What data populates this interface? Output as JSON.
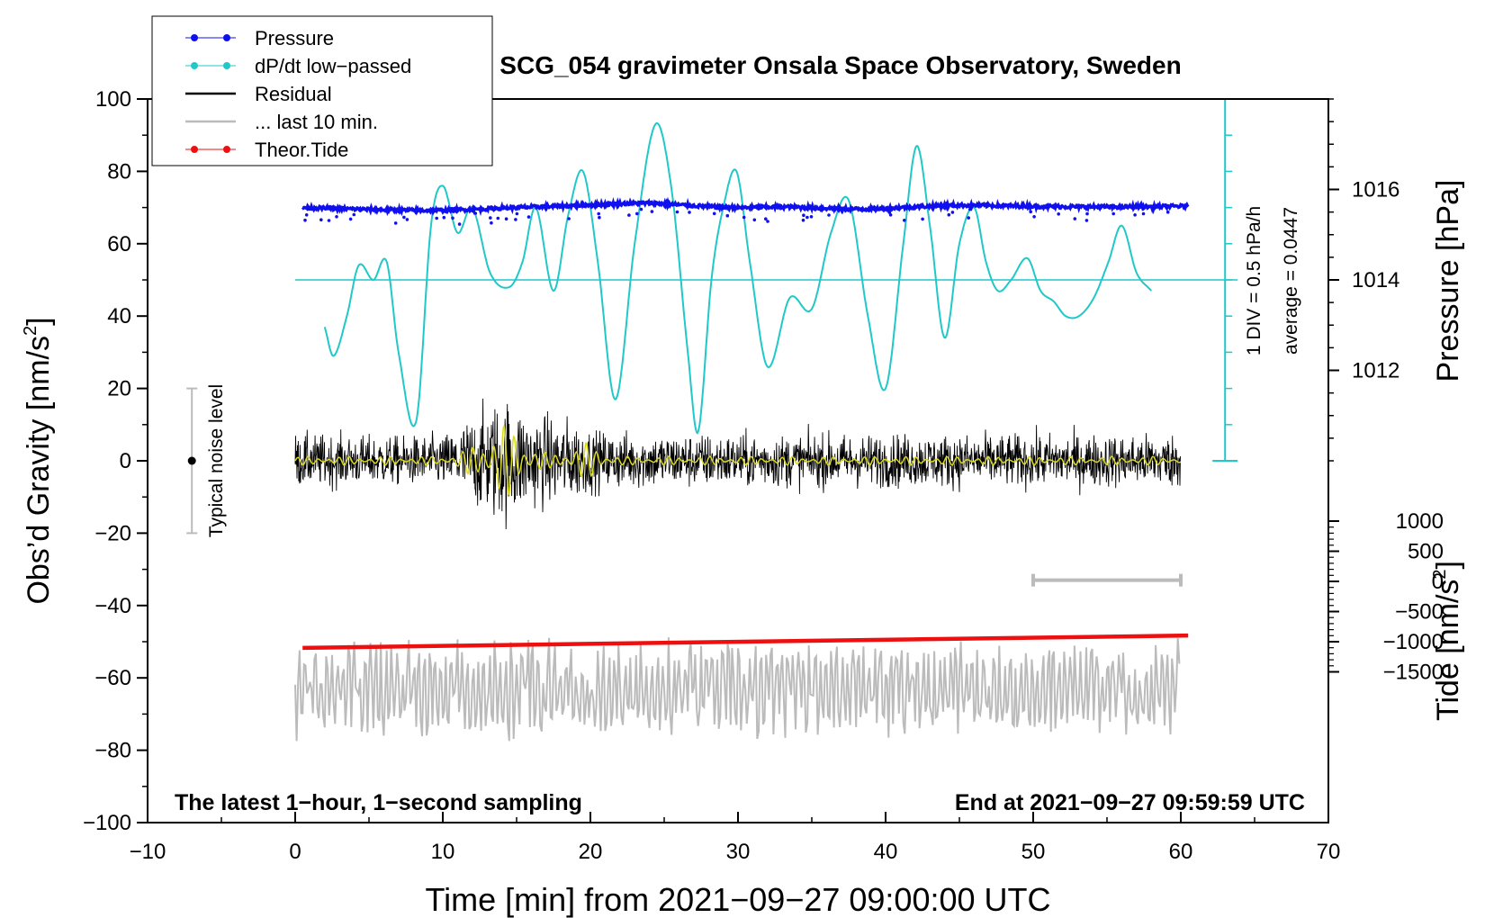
{
  "chart_data": {
    "type": "line",
    "title": "SCG_054 gravimeter Onsala Space Observatory, Sweden",
    "xlabel": "Time [min] from 2021−09−27 09:00:00 UTC",
    "ylabel_left": "Obs’d Gravity [nm/s",
    "ylabel_right_top": "Pressure [hPa]",
    "ylabel_right_bottom": "Tide [nm/s",
    "superscript": "2",
    "closing_bracket": "]",
    "xlim": [
      -10,
      70
    ],
    "ylim": [
      -100,
      100
    ],
    "x_ticks": [
      {
        "value": -10,
        "label": "−10"
      },
      {
        "value": 0,
        "label": "0"
      },
      {
        "value": 10,
        "label": "10"
      },
      {
        "value": 20,
        "label": "20"
      },
      {
        "value": 30,
        "label": "30"
      },
      {
        "value": 40,
        "label": "40"
      },
      {
        "value": 50,
        "label": "50"
      },
      {
        "value": 60,
        "label": "60"
      },
      {
        "value": 70,
        "label": "70"
      }
    ],
    "y_ticks": [
      {
        "value": 100,
        "label": "100"
      },
      {
        "value": 80,
        "label": "80"
      },
      {
        "value": 60,
        "label": "60"
      },
      {
        "value": 40,
        "label": "40"
      },
      {
        "value": 20,
        "label": "20"
      },
      {
        "value": 0,
        "label": "0"
      },
      {
        "value": -20,
        "label": "−20"
      },
      {
        "value": -40,
        "label": "−40"
      },
      {
        "value": -60,
        "label": "−60"
      },
      {
        "value": -80,
        "label": "−80"
      },
      {
        "value": -100,
        "label": "−100"
      }
    ],
    "pressure_axis": {
      "ticks": [
        {
          "value": 1016,
          "label": "1016",
          "y_gravity": 75
        },
        {
          "value": 1014,
          "label": "1014",
          "y_gravity": 50
        },
        {
          "value": 1012,
          "label": "1012",
          "y_gravity": 25
        }
      ]
    },
    "tide_axis": {
      "ylim": [
        -1500,
        1000
      ],
      "ticks": [
        {
          "value": 1000,
          "label": "1000"
        },
        {
          "value": 500,
          "label": "500"
        },
        {
          "value": 0,
          "label": "0"
        },
        {
          "value": -500,
          "label": "−500"
        },
        {
          "value": -1000,
          "label": "−1000"
        },
        {
          "value": -1500,
          "label": "−1500"
        }
      ]
    },
    "dpdt_scale": {
      "label_div": "1 DIV = 0.5 hPa/h",
      "label_avg": "average = 0.0447",
      "x": 63,
      "y_top": 100,
      "y_bottom": 0,
      "y_mid": 50,
      "divisions": 10
    },
    "legend": [
      {
        "label": "Pressure",
        "color": "#1010ee",
        "marker": true
      },
      {
        "label": "dP/dt low−passed",
        "color": "#20c8c8",
        "marker": true
      },
      {
        "label": "Residual",
        "color": "#000000",
        "marker": false
      },
      {
        "label": "... last 10 min.",
        "color": "#bbbbbb",
        "marker": false
      },
      {
        "label": "Theor.Tide",
        "color": "#ee1010",
        "marker": true
      }
    ],
    "series": [
      {
        "name": "Pressure",
        "color": "#1010ee",
        "x": [
          0.5,
          3,
          6,
          9,
          12,
          15,
          18,
          21,
          24,
          27,
          30,
          33,
          36,
          39,
          42,
          45,
          48,
          51,
          54,
          57,
          60.5
        ],
        "y": [
          70.0,
          69.7,
          69.4,
          69.2,
          69.5,
          70.0,
          70.4,
          70.9,
          71.2,
          70.5,
          70.0,
          70.2,
          69.8,
          69.6,
          70.2,
          70.6,
          70.5,
          70.3,
          70.2,
          70.2,
          70.4
        ]
      },
      {
        "name": "dP/dt low-passed",
        "color": "#20c8c8",
        "x": [
          2,
          2.6,
          3.5,
          4.3,
          5.3,
          6.2,
          7,
          8.2,
          9.2,
          10,
          11,
          12,
          13.2,
          14.5,
          15.4,
          16.3,
          17.5,
          18.5,
          19.5,
          20.5,
          21.7,
          23,
          24.4,
          25.5,
          26.6,
          27.3,
          28.2,
          29,
          29.9,
          30.8,
          32,
          33.5,
          35,
          36.3,
          37.5,
          38.8,
          40,
          41.2,
          42.1,
          43,
          44,
          45,
          46,
          46.8,
          47.6,
          48.5,
          49.6,
          50.5,
          51.4,
          52.2,
          53.1,
          54.1,
          55.1,
          56,
          57,
          58
        ],
        "y": [
          37,
          29,
          40,
          54,
          50,
          55,
          30,
          11,
          65,
          76,
          63,
          70,
          52,
          48,
          55,
          70,
          47,
          68,
          80,
          55,
          17,
          60,
          93,
          75,
          30,
          8,
          50,
          70,
          80,
          55,
          26,
          45,
          42,
          63,
          72,
          40,
          20,
          60,
          87,
          65,
          34,
          60,
          70,
          55,
          47,
          50,
          56,
          47,
          44,
          40,
          40,
          45,
          55,
          65,
          52,
          47
        ]
      },
      {
        "name": "Residual",
        "color": "#000000",
        "x": [
          0,
          10,
          12,
          14,
          16,
          19,
          20,
          22,
          30,
          40,
          50,
          60
        ],
        "y_envelope": [
          12,
          12,
          20,
          28,
          22,
          18,
          14,
          13,
          12,
          12,
          12,
          12
        ]
      },
      {
        "name": "... last 10 min.",
        "color": "#bbbbbb",
        "x": [
          0,
          60
        ],
        "y_center": -63,
        "y_range": [
          -78,
          -49
        ]
      },
      {
        "name": "Theor.Tide",
        "color": "#ee1010",
        "x": [
          0.5,
          60.5
        ],
        "y": [
          -51.7,
          -48.3
        ]
      }
    ],
    "noise_bar": {
      "x": -7,
      "y_low": -20,
      "y_high": 20,
      "center": 0,
      "label": "Typical noise level"
    },
    "window_marker": {
      "x_start": 50,
      "x_end": 60,
      "y": -33
    },
    "annotations": {
      "bottom_left": "The latest 1−hour, 1−second sampling",
      "bottom_right": "End at 2021−09−27 09:59:59 UTC"
    }
  }
}
